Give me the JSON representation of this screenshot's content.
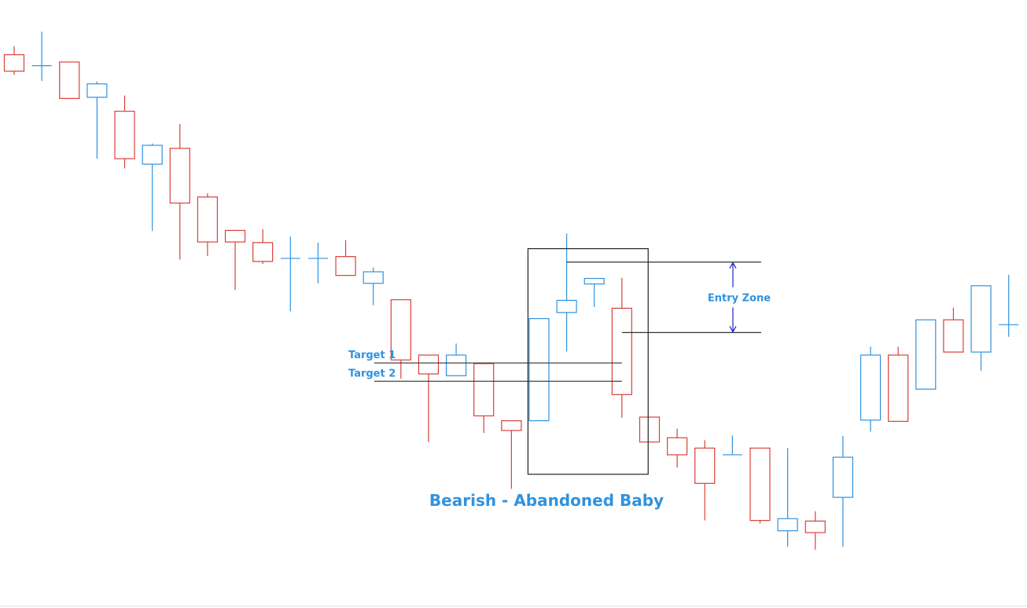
{
  "chart_data": {
    "type": "candlestick",
    "title": "Bearish - Abandoned Baby",
    "colors": {
      "bullish": "#2f93e0",
      "bearish": "#d9413a",
      "annotation": "#2f93e0",
      "arrow": "#1f1fd0",
      "line": "#333333"
    },
    "ylim": [
      0,
      100
    ],
    "candles": [
      {
        "o": 91.0,
        "h": 92.4,
        "l": 87.7,
        "c": 88.3
      },
      {
        "o": 89.2,
        "h": 94.8,
        "l": 86.7,
        "c": 89.2
      },
      {
        "o": 89.8,
        "h": 89.8,
        "l": 83.8,
        "c": 83.8
      },
      {
        "o": 84.0,
        "h": 86.6,
        "l": 73.9,
        "c": 86.2
      },
      {
        "o": 81.7,
        "h": 84.3,
        "l": 72.3,
        "c": 73.9
      },
      {
        "o": 73.0,
        "h": 76.4,
        "l": 62.0,
        "c": 76.1
      },
      {
        "o": 75.6,
        "h": 79.6,
        "l": 57.3,
        "c": 66.6
      },
      {
        "o": 67.6,
        "h": 68.2,
        "l": 57.9,
        "c": 60.2
      },
      {
        "o": 62.1,
        "h": 62.1,
        "l": 52.3,
        "c": 60.2
      },
      {
        "o": 60.1,
        "h": 62.3,
        "l": 56.6,
        "c": 57.0
      },
      {
        "o": 57.5,
        "h": 61.1,
        "l": 48.8,
        "c": 57.5
      },
      {
        "o": 57.5,
        "h": 60.1,
        "l": 53.4,
        "c": 57.5
      },
      {
        "o": 57.8,
        "h": 60.5,
        "l": 55.6,
        "c": 54.7
      },
      {
        "o": 53.4,
        "h": 56.0,
        "l": 49.8,
        "c": 55.3
      },
      {
        "o": 50.7,
        "h": 50.7,
        "l": 37.7,
        "c": 40.8
      },
      {
        "o": 41.6,
        "h": 41.6,
        "l": 27.3,
        "c": 38.5
      },
      {
        "o": 38.2,
        "h": 43.5,
        "l": 38.2,
        "c": 41.6
      },
      {
        "o": 40.2,
        "h": 40.2,
        "l": 28.8,
        "c": 31.6
      },
      {
        "o": 30.8,
        "h": 30.8,
        "l": 19.6,
        "c": 29.2
      },
      {
        "o": 30.8,
        "h": 47.6,
        "l": 30.8,
        "c": 47.6
      },
      {
        "o": 48.6,
        "h": 61.6,
        "l": 42.2,
        "c": 50.6
      },
      {
        "o": 53.3,
        "h": 54.2,
        "l": 49.5,
        "c": 54.2
      },
      {
        "o": 49.3,
        "h": 54.3,
        "l": 31.3,
        "c": 35.1
      },
      {
        "o": 31.4,
        "h": 31.4,
        "l": 27.3,
        "c": 27.3
      },
      {
        "o": 28.0,
        "h": 29.5,
        "l": 23.1,
        "c": 25.2
      },
      {
        "o": 26.3,
        "h": 27.6,
        "l": 14.4,
        "c": 20.5
      },
      {
        "o": 25.2,
        "h": 28.4,
        "l": 25.2,
        "c": 25.2
      },
      {
        "o": 26.3,
        "h": 26.3,
        "l": 13.9,
        "c": 14.4
      },
      {
        "o": 12.7,
        "h": 26.3,
        "l": 10.1,
        "c": 14.7
      },
      {
        "o": 14.3,
        "h": 15.9,
        "l": 9.6,
        "c": 12.4
      },
      {
        "o": 18.2,
        "h": 28.3,
        "l": 10.1,
        "c": 24.8
      },
      {
        "o": 30.9,
        "h": 43.0,
        "l": 29.0,
        "c": 41.6
      },
      {
        "o": 41.6,
        "h": 43.0,
        "l": 30.7,
        "c": 30.7
      },
      {
        "o": 36.0,
        "h": 47.4,
        "l": 36.0,
        "c": 47.4
      },
      {
        "o": 47.4,
        "h": 49.4,
        "l": 42.1,
        "c": 42.1
      },
      {
        "o": 42.1,
        "h": 53.0,
        "l": 39.0,
        "c": 53.0
      },
      {
        "o": 46.6,
        "h": 54.8,
        "l": 44.6,
        "c": 46.6
      }
    ],
    "pattern_box": {
      "first_candle": 19,
      "last_candle": 22,
      "high": 59.1,
      "low": 22.0
    },
    "entry_zone": {
      "label": "Entry Zone",
      "upper": 56.9,
      "lower": 45.3
    },
    "targets": [
      {
        "label": "Target 1",
        "value": 40.3
      },
      {
        "label": "Target 2",
        "value": 37.3
      }
    ]
  }
}
